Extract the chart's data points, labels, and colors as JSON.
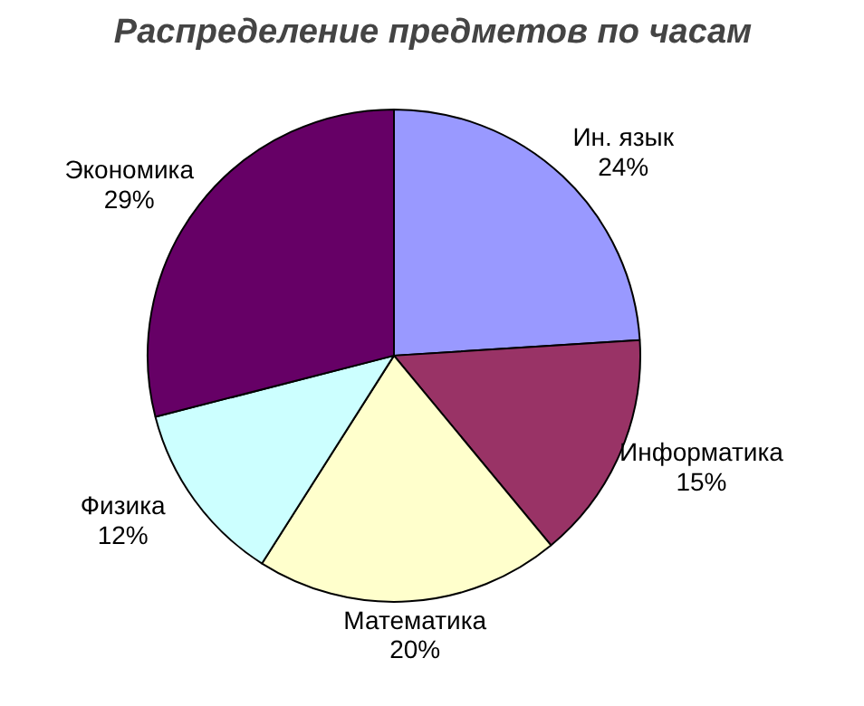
{
  "chart_data": {
    "type": "pie",
    "title": "Распределение предметов по часам",
    "categories": [
      "Ин. язык",
      "Информатика",
      "Математика",
      "Физика",
      "Экономика"
    ],
    "values": [
      24,
      15,
      20,
      12,
      29
    ],
    "value_labels": [
      "24%",
      "15%",
      "20%",
      "12%",
      "29%"
    ],
    "colors": [
      "#9999ff",
      "#993366",
      "#ffffcc",
      "#ccffff",
      "#660066"
    ]
  }
}
